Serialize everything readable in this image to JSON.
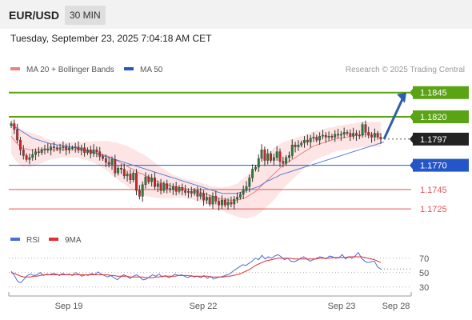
{
  "header": {
    "symbol": "EUR/USD",
    "timeframe": "30 MIN"
  },
  "timestamp": "Tuesday, September 23, 2025 7:04:18 AM CET",
  "colors": {
    "candle_up": "#2e7d32",
    "candle_down": "#c62828",
    "ma20": "#f08080",
    "bollinger_fill": "#fde0e0",
    "ma50": "#5b7fd1",
    "resistance": "#5aa315",
    "current": "#222222",
    "pivot": "#2456c9",
    "support": "#e05555",
    "rsi": "#4a6fd8",
    "rsi_ma": "#e03030",
    "arrow": "#2f5fa8"
  },
  "chart_data": [
    {
      "type": "candlestick",
      "legend": [
        {
          "label": "MA 20 + Bollinger Bands",
          "color": "#f08080"
        },
        {
          "label": "MA 50",
          "color": "#2456c9"
        }
      ],
      "credit": "Research © 2025 Trading Central",
      "x_labels": [
        "Sep 19",
        "Sep 22",
        "Sep 23",
        "Sep 28"
      ],
      "ylim": [
        1.1716,
        1.1858
      ],
      "levels": [
        {
          "label": "1.1845",
          "value": 1.1845,
          "kind": "resistance"
        },
        {
          "label": "1.1820",
          "value": 1.182,
          "kind": "resistance"
        },
        {
          "label": "1.1797",
          "value": 1.1797,
          "kind": "current"
        },
        {
          "label": "1.1770",
          "value": 1.177,
          "kind": "pivot"
        },
        {
          "label": "1.1745",
          "value": 1.1745,
          "kind": "support"
        },
        {
          "label": "1.1725",
          "value": 1.1725,
          "kind": "support"
        }
      ],
      "close": [
        1.1813,
        1.1807,
        1.1796,
        1.1786,
        1.178,
        1.1776,
        1.1778,
        1.1781,
        1.1784,
        1.1783,
        1.1786,
        1.1787,
        1.1786,
        1.1789,
        1.1788,
        1.1787,
        1.1788,
        1.1789,
        1.1786,
        1.1788,
        1.1788,
        1.1789,
        1.1786,
        1.1788,
        1.1783,
        1.1786,
        1.1782,
        1.1786,
        1.1784,
        1.1779,
        1.1777,
        1.1773,
        1.1771,
        1.1776,
        1.1762,
        1.1767,
        1.1766,
        1.1759,
        1.1761,
        1.1755,
        1.1762,
        1.1744,
        1.1738,
        1.175,
        1.1758,
        1.1753,
        1.1757,
        1.1748,
        1.1751,
        1.1744,
        1.1751,
        1.1746,
        1.1745,
        1.1748,
        1.1743,
        1.1747,
        1.1744,
        1.1742,
        1.1743,
        1.1741,
        1.1744,
        1.1738,
        1.1741,
        1.1734,
        1.1737,
        1.173,
        1.1738,
        1.1733,
        1.1729,
        1.1734,
        1.1729,
        1.1732,
        1.173,
        1.1735,
        1.1737,
        1.174,
        1.1745,
        1.1748,
        1.1757,
        1.1766,
        1.1768,
        1.1777,
        1.1786,
        1.1775,
        1.1782,
        1.1775,
        1.1778,
        1.1784,
        1.1774,
        1.1772,
        1.1778,
        1.178,
        1.1791,
        1.1789,
        1.1791,
        1.1793,
        1.1796,
        1.1794,
        1.1798,
        1.1799,
        1.1796,
        1.18,
        1.1801,
        1.1799,
        1.18,
        1.1799,
        1.1802,
        1.1801,
        1.1802,
        1.1804,
        1.1803,
        1.18,
        1.1803,
        1.1801,
        1.1801,
        1.1812,
        1.1804,
        1.1801,
        1.1799,
        1.1803,
        1.1799,
        1.1797
      ],
      "forecast_target": 1.1845,
      "ma20": [
        1.18,
        1.1796,
        1.1792,
        1.1789,
        1.1787,
        1.1787,
        1.1786,
        1.1786,
        1.1786,
        1.1786,
        1.1786,
        1.1786,
        1.1786,
        1.1786,
        1.1786,
        1.1786,
        1.1786,
        1.1786,
        1.1786,
        1.1786,
        1.1786,
        1.1786,
        1.1786,
        1.1785,
        1.1785,
        1.1785,
        1.1784,
        1.1784,
        1.1783,
        1.1782,
        1.1781,
        1.178,
        1.1779,
        1.1777,
        1.1776,
        1.1774,
        1.1772,
        1.1771,
        1.1769,
        1.1767,
        1.1766,
        1.1764,
        1.1762,
        1.1761,
        1.1759,
        1.1758,
        1.1756,
        1.1755,
        1.1753,
        1.1752,
        1.1751,
        1.175,
        1.1749,
        1.1748,
        1.1748,
        1.1747,
        1.1747,
        1.1746,
        1.1745,
        1.1745,
        1.1744,
        1.1743,
        1.1742,
        1.1741,
        1.174,
        1.1739,
        1.1738,
        1.1737,
        1.1736,
        1.1735,
        1.1735,
        1.1734,
        1.1734,
        1.1734,
        1.1734,
        1.1735,
        1.1736,
        1.1737,
        1.1739,
        1.1741,
        1.1743,
        1.1746,
        1.1749,
        1.1752,
        1.1755,
        1.1758,
        1.1761,
        1.1764,
        1.1767,
        1.177,
        1.1772,
        1.1774,
        1.1776,
        1.1778,
        1.178,
        1.1782,
        1.1784,
        1.1786,
        1.1788,
        1.179,
        1.1791,
        1.1792,
        1.1793,
        1.1794,
        1.1795,
        1.1796,
        1.1797,
        1.1798,
        1.1798,
        1.1799,
        1.1799,
        1.18,
        1.18,
        1.1801,
        1.1801,
        1.1802,
        1.1802,
        1.1802,
        1.1802,
        1.1802,
        1.1802,
        1.1802
      ],
      "band_width": [
        0.0018,
        0.0019,
        0.0019,
        0.0019,
        0.0019,
        0.0018,
        0.0018,
        0.0017,
        0.0016,
        0.0015,
        0.0014,
        0.0012,
        0.0011,
        0.001,
        0.0009,
        0.0009,
        0.0008,
        0.0008,
        0.0008,
        0.0008,
        0.0008,
        0.0008,
        0.0008,
        0.0009,
        0.0009,
        0.001,
        0.001,
        0.0011,
        0.0012,
        0.0013,
        0.0014,
        0.0015,
        0.0016,
        0.0017,
        0.0018,
        0.0019,
        0.002,
        0.002,
        0.0021,
        0.0021,
        0.0021,
        0.0021,
        0.0021,
        0.0021,
        0.0021,
        0.002,
        0.0019,
        0.0018,
        0.0017,
        0.0016,
        0.0015,
        0.0014,
        0.0013,
        0.0012,
        0.0011,
        0.0011,
        0.001,
        0.001,
        0.001,
        0.001,
        0.001,
        0.001,
        0.001,
        0.001,
        0.001,
        0.001,
        0.001,
        0.0011,
        0.0011,
        0.0012,
        0.0013,
        0.0014,
        0.0015,
        0.0016,
        0.0017,
        0.0019,
        0.002,
        0.0022,
        0.0023,
        0.0024,
        0.0025,
        0.0026,
        0.0027,
        0.0027,
        0.0027,
        0.0027,
        0.0027,
        0.0026,
        0.0025,
        0.0024,
        0.0023,
        0.0022,
        0.0021,
        0.002,
        0.0019,
        0.0018,
        0.0017,
        0.0016,
        0.0016,
        0.0015,
        0.0015,
        0.0014,
        0.0014,
        0.0014,
        0.0014,
        0.0013,
        0.0013,
        0.0013,
        0.0013,
        0.0013,
        0.0013,
        0.0013,
        0.0013,
        0.0013,
        0.0013,
        0.0013,
        0.0013,
        0.0013,
        0.0013,
        0.0013,
        0.0013,
        0.0013
      ],
      "ma50": [
        1.1812,
        1.181,
        1.1808,
        1.1806,
        1.1804,
        1.1802,
        1.18,
        1.1798,
        1.1797,
        1.1796,
        1.1795,
        1.1794,
        1.1793,
        1.1792,
        1.1792,
        1.1791,
        1.1791,
        1.179,
        1.179,
        1.1789,
        1.1789,
        1.1788,
        1.1787,
        1.1787,
        1.1786,
        1.1785,
        1.1784,
        1.1783,
        1.1782,
        1.1781,
        1.178,
        1.1779,
        1.1778,
        1.1777,
        1.1776,
        1.1775,
        1.1774,
        1.1773,
        1.1772,
        1.1771,
        1.177,
        1.1769,
        1.1768,
        1.1767,
        1.1766,
        1.1765,
        1.1764,
        1.1763,
        1.1762,
        1.1761,
        1.176,
        1.1759,
        1.1758,
        1.1757,
        1.1756,
        1.1755,
        1.1754,
        1.1753,
        1.1752,
        1.1751,
        1.175,
        1.1749,
        1.1748,
        1.1747,
        1.1746,
        1.1745,
        1.1744,
        1.1743,
        1.1742,
        1.1741,
        1.1741,
        1.1741,
        1.1741,
        1.1741,
        1.1741,
        1.1742,
        1.1743,
        1.1744,
        1.1745,
        1.1746,
        1.1747,
        1.1748,
        1.175,
        1.1752,
        1.1754,
        1.1755,
        1.1757,
        1.1758,
        1.176,
        1.1761,
        1.1762,
        1.1763,
        1.1764,
        1.1765,
        1.1766,
        1.1767,
        1.1768,
        1.1769,
        1.177,
        1.1771,
        1.1772,
        1.1773,
        1.1774,
        1.1775,
        1.1776,
        1.1777,
        1.1778,
        1.1779,
        1.178,
        1.1781,
        1.1782,
        1.1783,
        1.1784,
        1.1785,
        1.1786,
        1.1787,
        1.1788,
        1.1789,
        1.179,
        1.1791,
        1.1792,
        1.1793,
        1.1794
      ]
    },
    {
      "type": "line",
      "legend": [
        {
          "label": "RSI",
          "color": "#4a6fd8"
        },
        {
          "label": "9MA",
          "color": "#e03030"
        }
      ],
      "ylim": [
        22,
        82
      ],
      "y_ticks": [
        70,
        50,
        30
      ],
      "series": [
        {
          "name": "RSI",
          "values": [
            52,
            46,
            38,
            36,
            41,
            46,
            48,
            46,
            47,
            50,
            46,
            48,
            47,
            49,
            48,
            46,
            49,
            47,
            48,
            46,
            50,
            48,
            45,
            47,
            46,
            49,
            47,
            51,
            48,
            46,
            44,
            46,
            43,
            40,
            44,
            47,
            45,
            42,
            45,
            47,
            44,
            40,
            41,
            44,
            47,
            45,
            48,
            44,
            46,
            43,
            45,
            48,
            46,
            47,
            45,
            43,
            46,
            44,
            45,
            43,
            46,
            42,
            45,
            41,
            43,
            44,
            45,
            47,
            48,
            52,
            55,
            58,
            61,
            60,
            63,
            66,
            70,
            68,
            74,
            69,
            72,
            70,
            73,
            75,
            72,
            68,
            70,
            66,
            65,
            67,
            70,
            72,
            69,
            66,
            68,
            70,
            72,
            71,
            69,
            73,
            72,
            70,
            71,
            75,
            69,
            72,
            70,
            73,
            78,
            70,
            66,
            64,
            65,
            66,
            58,
            55
          ]
        },
        {
          "name": "9MA",
          "values": [
            50,
            49,
            47,
            45,
            44,
            44,
            44,
            45,
            45,
            46,
            47,
            47,
            47,
            47,
            47,
            47,
            47,
            47,
            47,
            47,
            47,
            47,
            47,
            47,
            47,
            47,
            47,
            47,
            47,
            47,
            47,
            46,
            46,
            45,
            45,
            45,
            45,
            44,
            44,
            44,
            44,
            44,
            43,
            43,
            43,
            44,
            44,
            45,
            45,
            45,
            45,
            45,
            46,
            46,
            46,
            46,
            45,
            45,
            45,
            45,
            45,
            45,
            44,
            44,
            44,
            44,
            44,
            45,
            45,
            46,
            47,
            48,
            50,
            52,
            54,
            57,
            60,
            62,
            64,
            66,
            67,
            68,
            69,
            70,
            70,
            70,
            70,
            70,
            69,
            69,
            69,
            69,
            69,
            69,
            69,
            69,
            70,
            70,
            70,
            70,
            71,
            71,
            71,
            71,
            71,
            72,
            72,
            72,
            72,
            72,
            71,
            70,
            69,
            68,
            66,
            64
          ]
        }
      ]
    }
  ]
}
